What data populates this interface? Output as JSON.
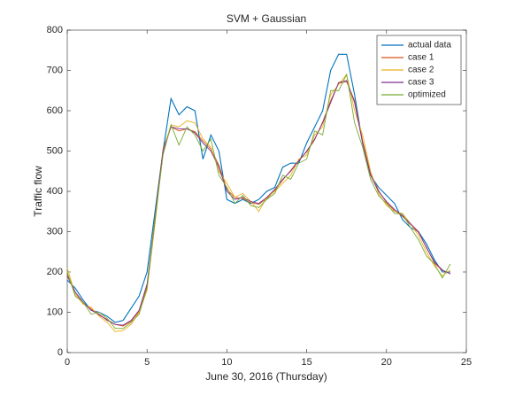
{
  "chart_data": {
    "type": "line",
    "title": "SVM + Gaussian",
    "x_label": "June 30, 2016 (Thursday)",
    "y_label": "Traffic flow",
    "x": [
      0,
      0.5,
      1,
      1.5,
      2,
      2.5,
      3,
      3.5,
      4,
      4.5,
      5,
      5.5,
      6,
      6.5,
      7,
      7.5,
      8,
      8.5,
      9,
      9.5,
      10,
      10.5,
      11,
      11.5,
      12,
      12.5,
      13,
      13.5,
      14,
      14.5,
      15,
      15.5,
      16,
      16.5,
      17,
      17.5,
      18,
      18.5,
      19,
      19.5,
      20,
      20.5,
      21,
      21.5,
      22,
      22.5,
      23,
      23.5,
      24
    ],
    "series": [
      {
        "name": "actual data",
        "color": "#0072bd",
        "values": [
          180,
          160,
          130,
          105,
          100,
          90,
          75,
          80,
          110,
          140,
          200,
          350,
          500,
          630,
          590,
          610,
          600,
          480,
          540,
          500,
          380,
          370,
          380,
          370,
          380,
          400,
          410,
          460,
          470,
          470,
          520,
          560,
          600,
          700,
          740,
          740,
          640,
          520,
          440,
          410,
          390,
          370,
          330,
          310,
          300,
          270,
          230,
          200,
          200
        ]
      },
      {
        "name": "case 1",
        "color": "#d95319",
        "values": [
          195,
          150,
          122,
          108,
          93,
          82,
          70,
          66,
          78,
          102,
          165,
          335,
          505,
          560,
          550,
          555,
          548,
          525,
          505,
          465,
          405,
          385,
          382,
          372,
          368,
          382,
          402,
          428,
          452,
          478,
          498,
          528,
          572,
          625,
          668,
          672,
          625,
          525,
          445,
          402,
          372,
          352,
          338,
          318,
          298,
          262,
          222,
          204,
          196
        ]
      },
      {
        "name": "case 2",
        "color": "#edb120",
        "values": [
          210,
          145,
          120,
          112,
          90,
          75,
          52,
          55,
          70,
          100,
          155,
          320,
          500,
          565,
          560,
          575,
          570,
          530,
          510,
          450,
          420,
          385,
          395,
          375,
          350,
          385,
          400,
          420,
          440,
          480,
          490,
          540,
          560,
          640,
          665,
          690,
          600,
          540,
          450,
          395,
          365,
          350,
          345,
          320,
          290,
          250,
          215,
          190,
          205
        ]
      },
      {
        "name": "case 3",
        "color": "#7e2f8e",
        "values": [
          190,
          150,
          125,
          105,
          95,
          80,
          70,
          68,
          80,
          105,
          170,
          330,
          500,
          560,
          555,
          555,
          545,
          520,
          500,
          460,
          400,
          380,
          385,
          375,
          370,
          385,
          405,
          430,
          450,
          475,
          500,
          530,
          570,
          620,
          670,
          675,
          620,
          520,
          440,
          400,
          375,
          355,
          340,
          320,
          300,
          260,
          225,
          205,
          195
        ]
      },
      {
        "name": "optimized",
        "color": "#77ac30",
        "values": [
          200,
          140,
          125,
          95,
          100,
          85,
          60,
          60,
          75,
          95,
          160,
          330,
          490,
          565,
          515,
          560,
          540,
          500,
          530,
          440,
          410,
          370,
          390,
          365,
          360,
          380,
          395,
          440,
          430,
          470,
          480,
          550,
          540,
          650,
          650,
          690,
          570,
          510,
          430,
          390,
          370,
          345,
          345,
          310,
          280,
          240,
          220,
          185,
          220
        ]
      }
    ],
    "xlim": [
      0,
      25
    ],
    "xticks": [
      0,
      5,
      10,
      15,
      20,
      25
    ],
    "ylim": [
      0,
      800
    ],
    "yticks": [
      0,
      100,
      200,
      300,
      400,
      500,
      600,
      700,
      800
    ],
    "legend": "upper right"
  }
}
